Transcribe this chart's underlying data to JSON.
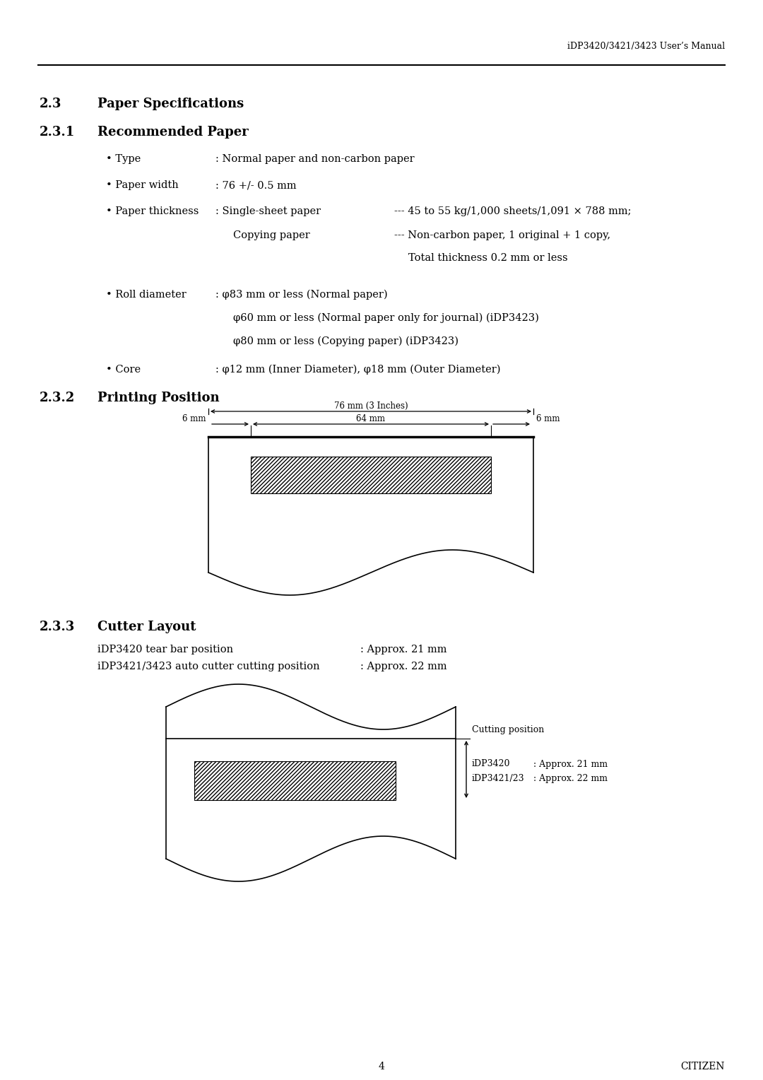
{
  "header_text": "iDP3420/3421/3423 User’s Manual",
  "section_23": "2.3",
  "section_23_title": "Paper Specifications",
  "section_231": "2.3.1",
  "section_231_title": "Recommended Paper",
  "section_232": "2.3.2",
  "section_232_title": "Printing Position",
  "section_233": "2.3.3",
  "section_233_title": "Cutter Layout",
  "dim_76mm": "76 mm (3 Inches)",
  "dim_64mm": "64 mm",
  "dim_6mm_left": "6 mm",
  "dim_6mm_right": "6 mm",
  "cutter_line1_label": "iDP3420 tear bar position",
  "cutter_line1_value": ": Approx. 21 mm",
  "cutter_line2_label": "iDP3421/3423 auto cutter cutting position",
  "cutter_line2_value": ": Approx. 22 mm",
  "cutting_position_label": "Cutting position",
  "idp3420_label": "iDP3420",
  "idp3420_value": ": Approx. 21 mm",
  "idp342123_label": "iDP3421/23",
  "idp342123_value": ": Approx. 22 mm",
  "footer_page": "4",
  "footer_brand": "CITIZEN",
  "bg_color": "#ffffff",
  "text_color": "#000000",
  "bullets": [
    {
      "label": "• Type",
      "col2": ": Normal paper and non-carbon paper",
      "col3": ""
    },
    {
      "label": "• Paper width",
      "col2": ": 76 +/- 0.5 mm",
      "col3": ""
    },
    {
      "label": "• Paper thickness",
      "col2": ": Single-sheet paper",
      "col3": "--- 45 to 55 kg/1,000 sheets/1,091 × 788 mm;"
    },
    {
      "label": "",
      "col2": "Copying paper",
      "col3": "--- Non-carbon paper, 1 original + 1 copy,"
    },
    {
      "label": "",
      "col2": "",
      "col3": "Total thickness 0.2 mm or less"
    },
    {
      "label": "• Roll diameter",
      "col2": ": φ83 mm or less (Normal paper)",
      "col3": ""
    },
    {
      "label": "",
      "col2": "φ60 mm or less (Normal paper only for journal) (iDP3423)",
      "col3": ""
    },
    {
      "label": "",
      "col2": "φ80 mm or less (Copying paper) (iDP3423)",
      "col3": ""
    },
    {
      "label": "• Core",
      "col2": ": φ12 mm (Inner Diameter), φ18 mm (Outer Diameter)",
      "col3": ""
    }
  ]
}
